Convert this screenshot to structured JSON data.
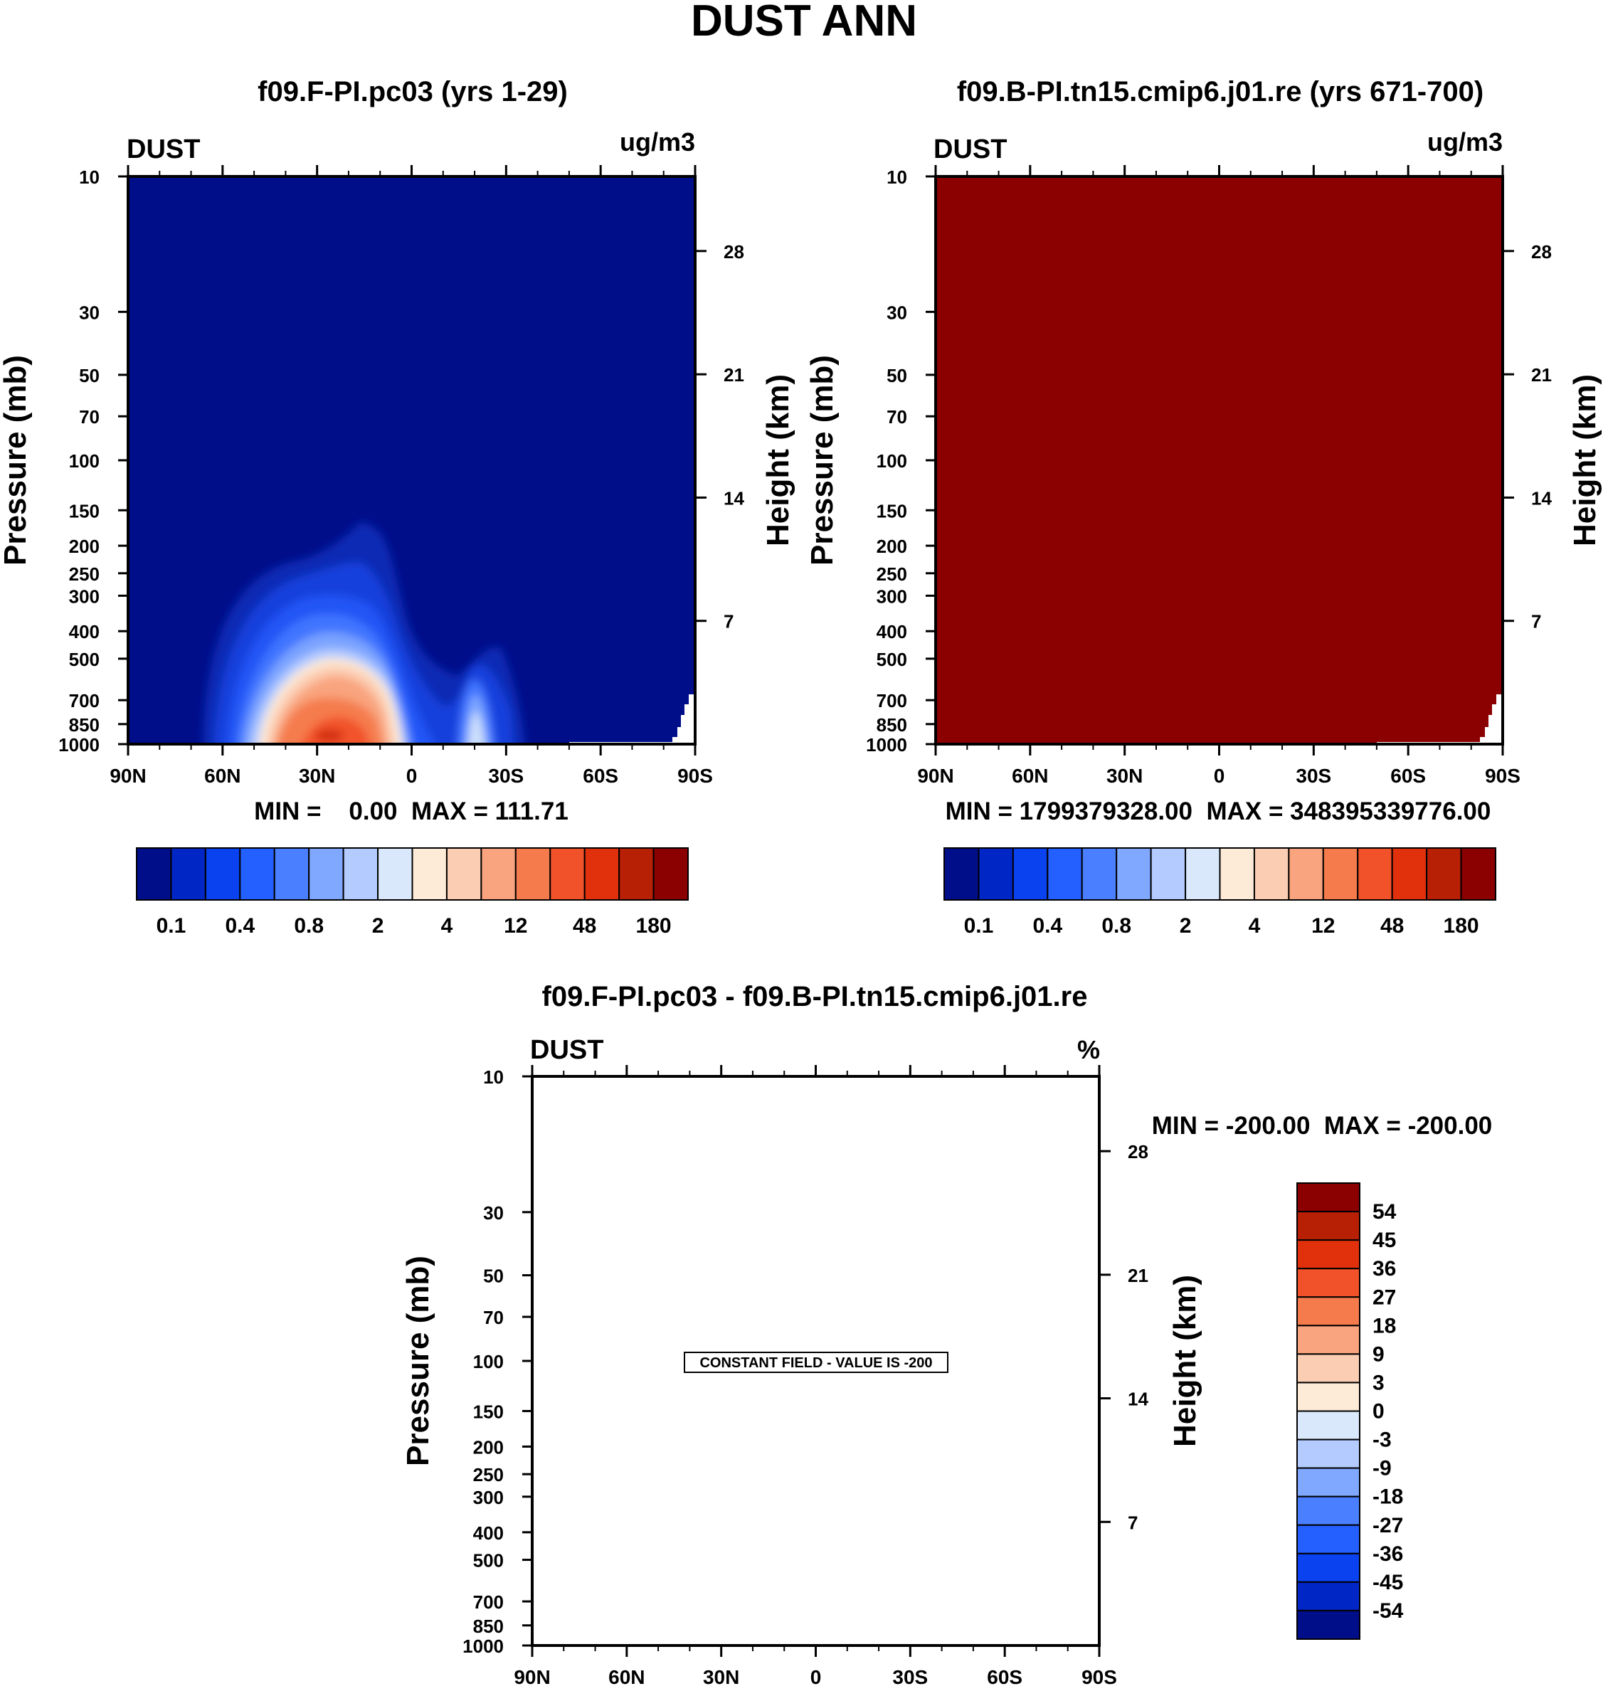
{
  "figure_title": "DUST ANN",
  "chart_data": [
    {
      "type": "contour",
      "title": "f09.F-PI.pc03 (yrs 1-29)",
      "variable_label": "DUST",
      "units_label": "ug/m3",
      "ylabel_left": "Pressure (mb)",
      "ylabel_right": "Height (km)",
      "x_ticklabels": [
        "90N",
        "60N",
        "30N",
        "0",
        "30S",
        "60S",
        "90S"
      ],
      "x_values": [
        90,
        60,
        30,
        0,
        -30,
        -60,
        -90
      ],
      "pressure_ticklabels": [
        "10",
        "30",
        "50",
        "70",
        "100",
        "150",
        "200",
        "250",
        "300",
        "400",
        "500",
        "700",
        "850",
        "1000"
      ],
      "pressure_values": [
        10,
        30,
        50,
        70,
        100,
        150,
        200,
        250,
        300,
        400,
        500,
        700,
        850,
        1000
      ],
      "height_ticklabels": [
        "28",
        "21",
        "14",
        "7"
      ],
      "height_values": [
        28,
        21,
        14,
        7
      ],
      "ylim_mb": [
        1000,
        10
      ],
      "stats_text": "MIN =    0.00  MAX = 111.71",
      "min": 0.0,
      "max": 111.71,
      "colorbar_labels": [
        "0.1",
        "0.4",
        "0.8",
        "2",
        "4",
        "12",
        "48",
        "180"
      ]
    },
    {
      "type": "contour",
      "title": "f09.B-PI.tn15.cmip6.j01.re (yrs 671-700)",
      "variable_label": "DUST",
      "units_label": "ug/m3",
      "ylabel_left": "Pressure (mb)",
      "ylabel_right": "Height (km)",
      "x_ticklabels": [
        "90N",
        "60N",
        "30N",
        "0",
        "30S",
        "60S",
        "90S"
      ],
      "x_values": [
        90,
        60,
        30,
        0,
        -30,
        -60,
        -90
      ],
      "pressure_ticklabels": [
        "10",
        "30",
        "50",
        "70",
        "100",
        "150",
        "200",
        "250",
        "300",
        "400",
        "500",
        "700",
        "850",
        "1000"
      ],
      "pressure_values": [
        10,
        30,
        50,
        70,
        100,
        150,
        200,
        250,
        300,
        400,
        500,
        700,
        850,
        1000
      ],
      "height_ticklabels": [
        "28",
        "21",
        "14",
        "7"
      ],
      "height_values": [
        28,
        21,
        14,
        7
      ],
      "ylim_mb": [
        1000,
        10
      ],
      "stats_text": "MIN = 1799379328.00  MAX = 348395339776.00",
      "min": 1799379328.0,
      "max": 348395339776.0,
      "colorbar_labels": [
        "0.1",
        "0.4",
        "0.8",
        "2",
        "4",
        "12",
        "48",
        "180"
      ]
    },
    {
      "type": "contour",
      "title": "f09.F-PI.pc03 - f09.B-PI.tn15.cmip6.j01.re",
      "variable_label": "DUST",
      "units_label": "%",
      "ylabel_left": "Pressure (mb)",
      "ylabel_right": "Height (km)",
      "x_ticklabels": [
        "90N",
        "60N",
        "30N",
        "0",
        "30S",
        "60S",
        "90S"
      ],
      "x_values": [
        90,
        60,
        30,
        0,
        -30,
        -60,
        -90
      ],
      "pressure_ticklabels": [
        "10",
        "30",
        "50",
        "70",
        "100",
        "150",
        "200",
        "250",
        "300",
        "400",
        "500",
        "700",
        "850",
        "1000"
      ],
      "pressure_values": [
        10,
        30,
        50,
        70,
        100,
        150,
        200,
        250,
        300,
        400,
        500,
        700,
        850,
        1000
      ],
      "height_ticklabels": [
        "28",
        "21",
        "14",
        "7"
      ],
      "height_values": [
        28,
        21,
        14,
        7
      ],
      "ylim_mb": [
        1000,
        10
      ],
      "stats_text": "MIN = -200.00  MAX = -200.00",
      "min": -200.0,
      "max": -200.0,
      "annotation": "CONSTANT FIELD - VALUE IS -200",
      "colorbar_labels": [
        "54",
        "45",
        "36",
        "27",
        "18",
        "9",
        "3",
        "0",
        "-3",
        "-9",
        "-18",
        "-27",
        "-36",
        "-45",
        "-54"
      ]
    }
  ],
  "colors": {
    "seq": [
      "#000e8a",
      "#0026c6",
      "#0a42f0",
      "#2460ff",
      "#4a80ff",
      "#80a8ff",
      "#b4cbff",
      "#d9e8fb",
      "#fdebd8",
      "#fbcdb2",
      "#f9a47e",
      "#f57b4d",
      "#f2522a",
      "#e0310c",
      "#b82006",
      "#8b0000"
    ],
    "div": [
      "#000e8a",
      "#0026c6",
      "#0a42f0",
      "#2460ff",
      "#4a80ff",
      "#80a8ff",
      "#b4cbff",
      "#d9e8fb",
      "#fdebd8",
      "#fbcdb2",
      "#f9a47e",
      "#f57b4d",
      "#f2522a",
      "#e0310c",
      "#b82006",
      "#8b0000"
    ]
  }
}
